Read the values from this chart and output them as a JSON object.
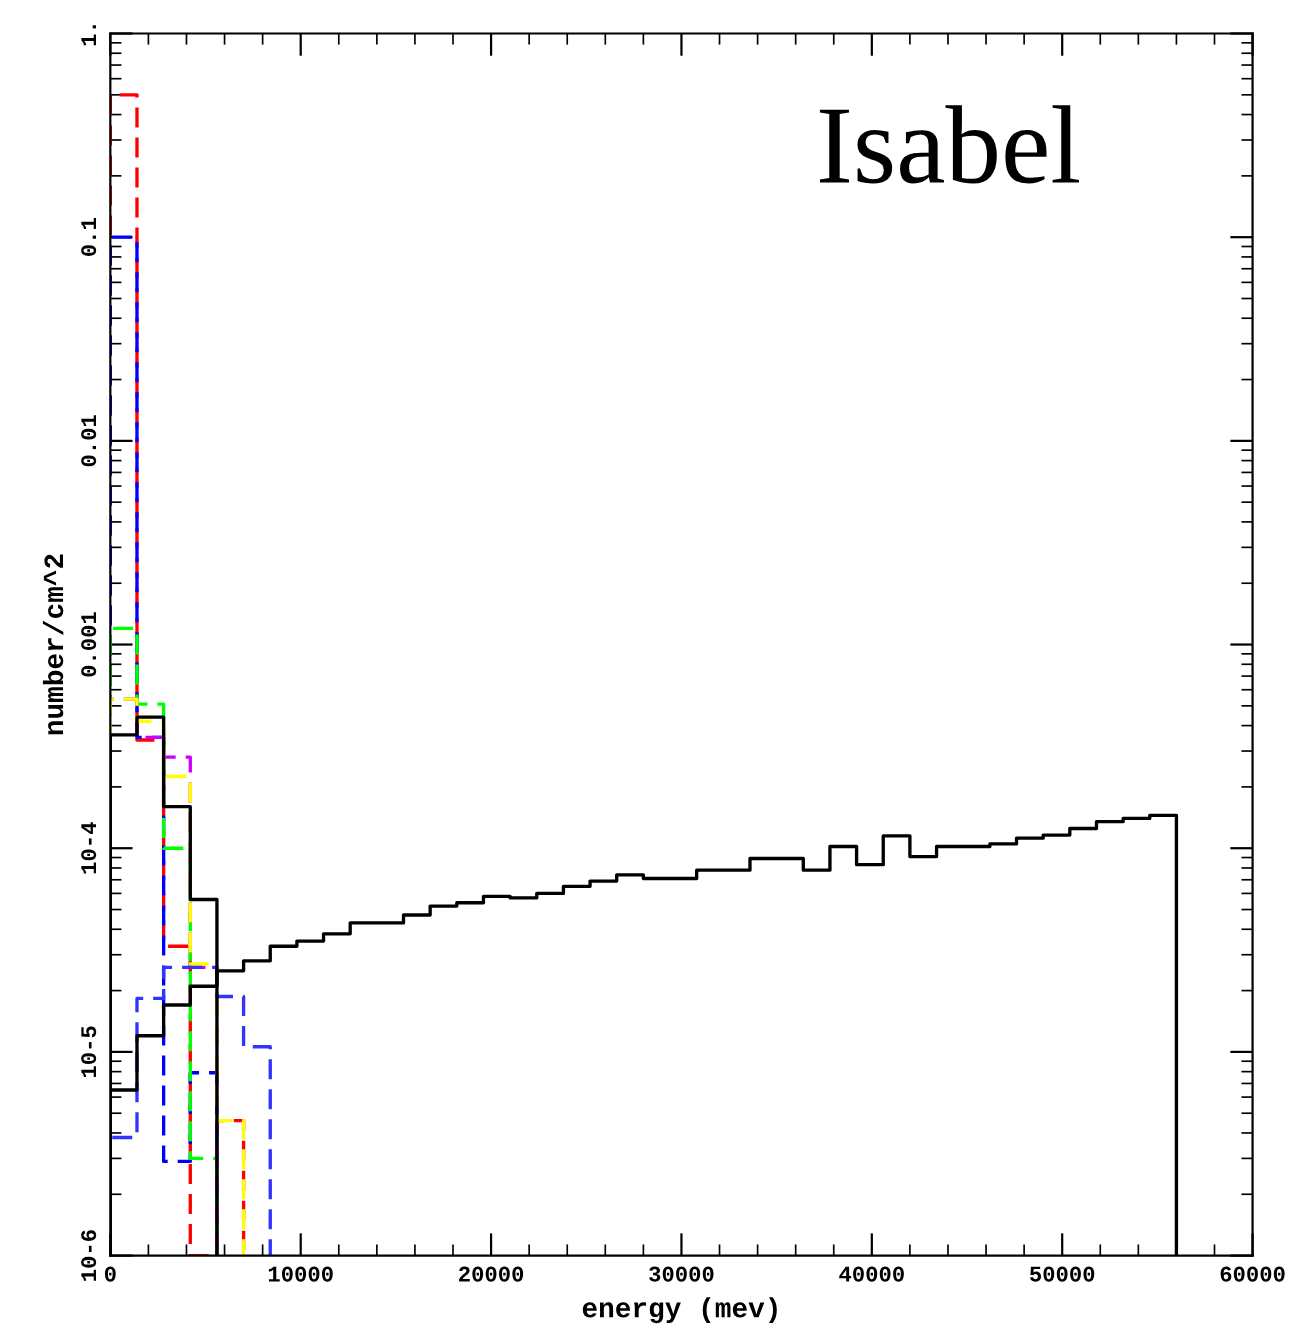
{
  "chart_data": {
    "type": "histogram",
    "xlabel": "energy (mev)",
    "ylabel": "number/cm^2",
    "annotations": [
      "Isabel"
    ],
    "log": "y",
    "grid": false,
    "legend": false,
    "xlim": [
      0,
      60000
    ],
    "xticks": [
      0,
      10000,
      20000,
      30000,
      40000,
      50000,
      60000
    ],
    "ylim": [
      1e-06,
      1
    ],
    "yticks": [
      {
        "value": 1,
        "label": "1."
      },
      {
        "value": 0.1,
        "label": "0.1"
      },
      {
        "value": 0.01,
        "label": "0.01"
      },
      {
        "value": 0.001,
        "label": "0.001"
      },
      {
        "value": 0.0001,
        "label": "10-4"
      },
      {
        "value": 1e-05,
        "label": "10-5"
      },
      {
        "value": 1e-06,
        "label": "10-6"
      }
    ],
    "bins": [
      0,
      1400,
      2800,
      4200,
      5600,
      7000,
      8400,
      9800,
      11200,
      12600,
      14000,
      15400,
      16800,
      18200,
      19600,
      21000,
      22400,
      23800,
      25200,
      26600,
      28000,
      29400,
      30800,
      32200,
      33600,
      35000,
      36400,
      37800,
      39200,
      40600,
      42000,
      43400,
      44800,
      46200,
      47600,
      49000,
      50400,
      51800,
      53200,
      54600,
      56000
    ],
    "series": [
      {
        "color": "#ff0000",
        "line_style": "dashed",
        "bins": [
          0,
          1400,
          2800,
          4200,
          5600,
          7000
        ],
        "values": [
          0.5,
          0.00034,
          3.3e-05,
          null,
          4.6e-06
        ]
      },
      {
        "color": "#0000ff",
        "line_style": "dashed",
        "bins": [
          0,
          1400,
          2800,
          4200,
          5600
        ],
        "values": [
          0.1,
          0.00035,
          2.9e-06,
          7.9e-06
        ]
      },
      {
        "color": "#00ff00",
        "line_style": "dashed",
        "bins": [
          0,
          1400,
          2800,
          4200,
          5600
        ],
        "values": [
          0.0012,
          0.00051,
          0.0001,
          3e-06
        ]
      },
      {
        "color": "#cc00ff",
        "line_style": "dashed",
        "bins": [
          0,
          1400,
          2800,
          4200,
          5600
        ],
        "values": [
          0.00054,
          0.00035,
          0.00028,
          2.6e-05
        ]
      },
      {
        "color": "#ffff00",
        "line_style": "dashed",
        "bins": [
          0,
          1400,
          2800,
          4200,
          5600,
          7000
        ],
        "values": [
          0.00054,
          0.00042,
          0.000225,
          2.7e-05,
          4.6e-06
        ]
      },
      {
        "color": "#3333ff",
        "line_style": "dashed",
        "bins": [
          0,
          1400,
          2800,
          4200,
          5600,
          7000,
          8400
        ],
        "values": [
          3.8e-06,
          1.83e-05,
          2.6e-05,
          2.6e-05,
          1.87e-05,
          1.06e-05
        ]
      },
      {
        "color": "#000000",
        "line_style": "solid",
        "bins": [
          0,
          1400,
          2800,
          4200,
          5600
        ],
        "values": [
          0.00036,
          0.00044,
          0.00016,
          5.6e-05
        ]
      },
      {
        "color": "#000000",
        "line_style": "solid",
        "values": [
          6.5e-06,
          1.2e-05,
          1.7e-05,
          2.1e-05,
          2.5e-05,
          2.8e-05,
          3.3e-05,
          3.5e-05,
          3.8e-05,
          4.3e-05,
          4.3e-05,
          4.7e-05,
          5.2e-05,
          5.4e-05,
          5.8e-05,
          5.7e-05,
          6e-05,
          6.5e-05,
          6.9e-05,
          7.4e-05,
          7.1e-05,
          7.1e-05,
          7.8e-05,
          7.8e-05,
          8.9e-05,
          8.9e-05,
          7.8e-05,
          0.000102,
          8.3e-05,
          0.000115,
          9.1e-05,
          0.000102,
          0.000102,
          0.000105,
          0.000112,
          0.000116,
          0.000125,
          0.000135,
          0.00014,
          0.000145
        ]
      }
    ]
  }
}
